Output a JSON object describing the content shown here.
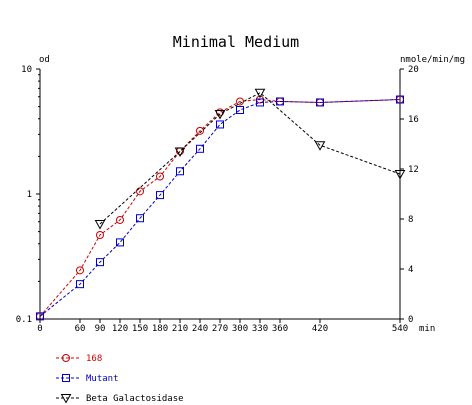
{
  "chart_data": {
    "type": "line",
    "title": "Minimal Medium",
    "y_left_label": "od",
    "y_right_label": "nmole/min/mg",
    "x_unit_label": "min",
    "y_left_scale": "log",
    "y_left_range": [
      0.1,
      10
    ],
    "y_left_ticks": [
      0.1,
      1,
      10
    ],
    "y_left_tick_labels": [
      "0.1",
      "1",
      "10"
    ],
    "y_right_range": [
      0,
      20
    ],
    "y_right_ticks": [
      0,
      4,
      8,
      12,
      16,
      20
    ],
    "x_range": [
      0,
      540
    ],
    "x_ticks": [
      0,
      60,
      90,
      120,
      150,
      180,
      210,
      240,
      270,
      300,
      330,
      360,
      420,
      540
    ],
    "grid": false,
    "legend_position": "bottom-left",
    "series": [
      {
        "name": "168",
        "axis": "left",
        "color": "#cc0000",
        "marker": "circle",
        "points": [
          [
            0,
            0.105
          ],
          [
            60,
            0.245
          ],
          [
            90,
            0.47
          ],
          [
            120,
            0.62
          ],
          [
            150,
            1.05
          ],
          [
            180,
            1.38
          ],
          [
            210,
            2.2
          ],
          [
            240,
            3.2
          ],
          [
            270,
            4.5
          ],
          [
            300,
            5.5
          ],
          [
            330,
            5.7
          ],
          [
            360,
            5.5
          ],
          [
            420,
            5.4
          ],
          [
            540,
            5.7
          ]
        ]
      },
      {
        "name": "Mutant",
        "axis": "left",
        "color": "#0000cc",
        "marker": "square",
        "points": [
          [
            0,
            0.105
          ],
          [
            60,
            0.19
          ],
          [
            90,
            0.285
          ],
          [
            120,
            0.41
          ],
          [
            150,
            0.64
          ],
          [
            180,
            0.98
          ],
          [
            210,
            1.52
          ],
          [
            240,
            2.3
          ],
          [
            270,
            3.6
          ],
          [
            300,
            4.7
          ],
          [
            330,
            5.4
          ],
          [
            360,
            5.5
          ],
          [
            420,
            5.4
          ],
          [
            540,
            5.7
          ]
        ]
      },
      {
        "name": "Beta Galactosidase",
        "axis": "right",
        "color": "#000000",
        "marker": "triangle-down",
        "points": [
          [
            90,
            7.6
          ],
          [
            210,
            13.4
          ],
          [
            270,
            16.4
          ],
          [
            330,
            18.1
          ],
          [
            420,
            13.9
          ],
          [
            540,
            11.6
          ]
        ]
      }
    ]
  }
}
